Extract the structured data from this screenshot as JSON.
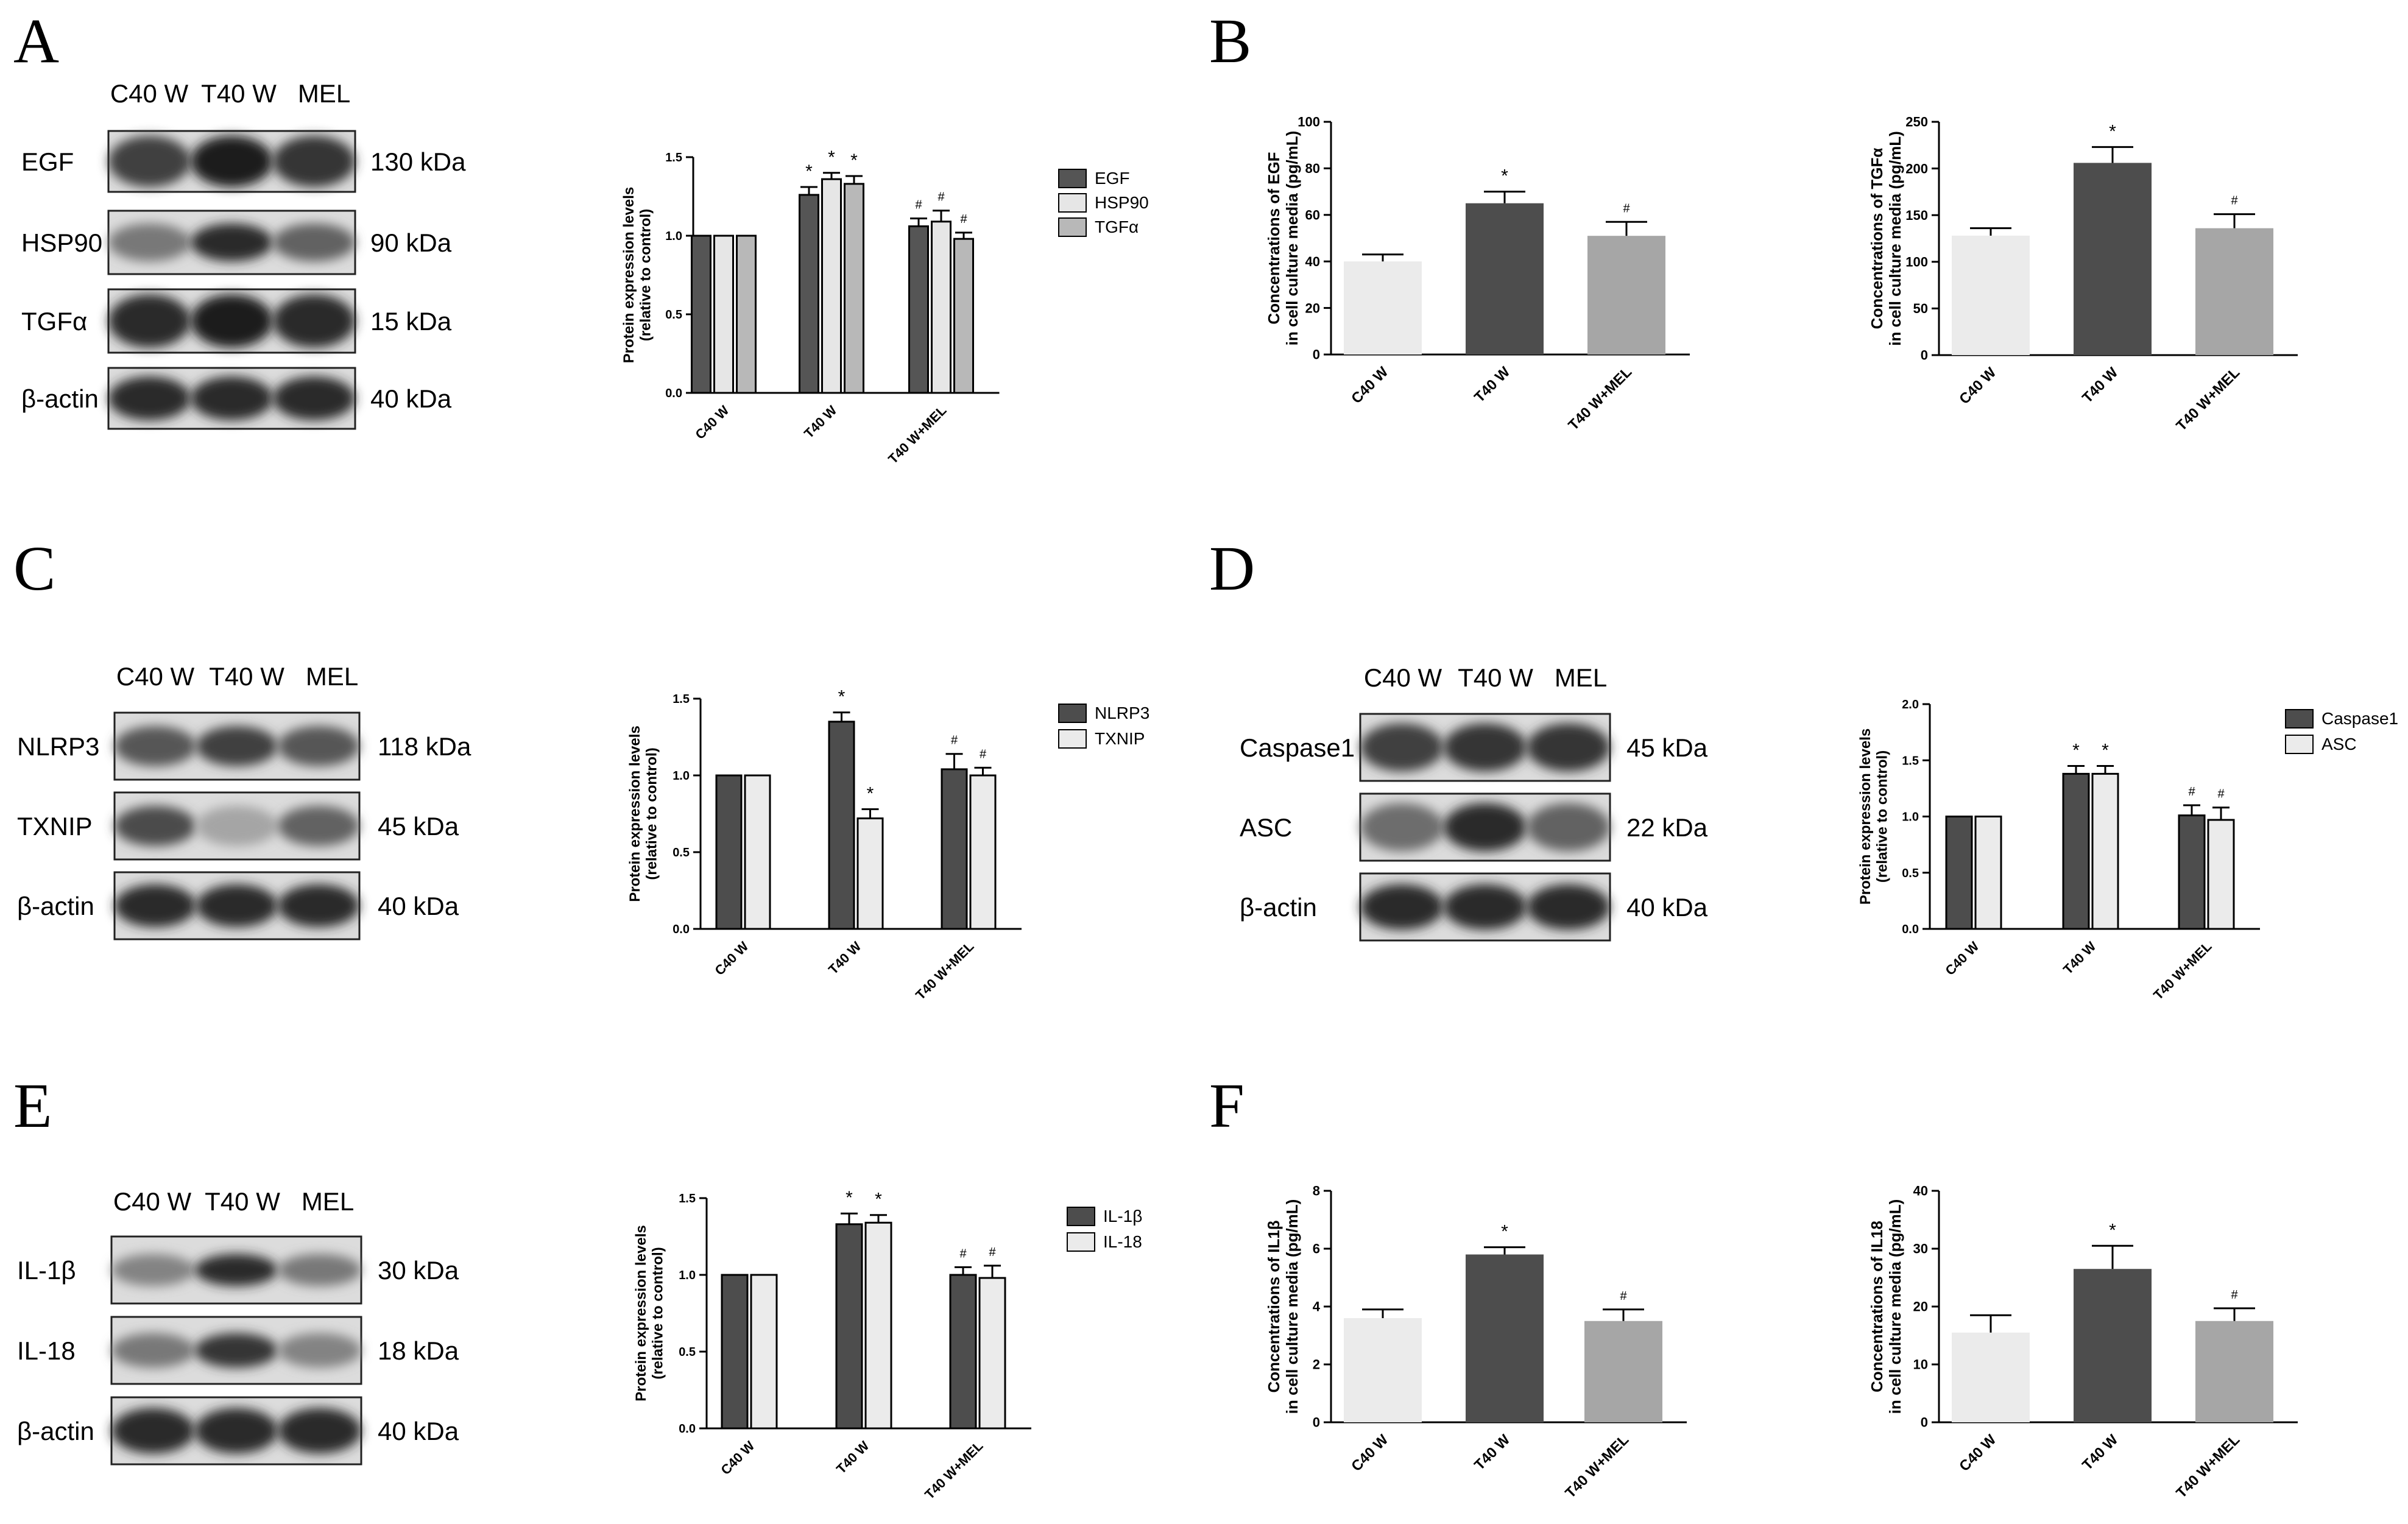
{
  "lane_labels": [
    "C40 W",
    "T40 W",
    "MEL"
  ],
  "panels": [
    {
      "letter": "A",
      "rows": [
        {
          "name": "EGF",
          "kda": "130 kDa"
        },
        {
          "name": "HSP90",
          "kda": "90 kDa"
        },
        {
          "name": "TGFα",
          "kda": "15 kDa"
        },
        {
          "name": "β-actin",
          "kda": "40 kDa"
        }
      ]
    },
    {
      "letter": "B",
      "rows": []
    },
    {
      "letter": "C",
      "rows": [
        {
          "name": "NLRP3",
          "kda": "118 kDa"
        },
        {
          "name": "TXNIP",
          "kda": "45 kDa"
        },
        {
          "name": "β-actin",
          "kda": "40 kDa"
        }
      ]
    },
    {
      "letter": "D",
      "rows": [
        {
          "name": "Caspase1",
          "kda": "45 kDa"
        },
        {
          "name": "ASC",
          "kda": "22 kDa"
        },
        {
          "name": "β-actin",
          "kda": "40 kDa"
        }
      ]
    },
    {
      "letter": "E",
      "rows": [
        {
          "name": "IL-1β",
          "kda": "30 kDa"
        },
        {
          "name": "IL-18",
          "kda": "18 kDa"
        },
        {
          "name": "β-actin",
          "kda": "40 kDa"
        }
      ]
    },
    {
      "letter": "F",
      "rows": []
    }
  ],
  "colors": {
    "dark": "#4d4d4d",
    "light": "#ebebeb",
    "mid": "#a6a6a6",
    "egf_dark": "#555555",
    "egf_light": "#e6e6e6",
    "egf_mid": "#b8b8b8"
  },
  "chart_data": [
    {
      "type": "bar",
      "categories": [
        "C40 W",
        "T40 W",
        "T40 W+MEL"
      ],
      "series": [
        {
          "name": "EGF",
          "values": [
            1.0,
            1.26,
            1.06
          ],
          "errors": [
            0,
            0.05,
            0.05
          ]
        },
        {
          "name": "HSP90",
          "values": [
            1.0,
            1.36,
            1.09
          ],
          "errors": [
            0,
            0.04,
            0.07
          ]
        },
        {
          "name": "TGFα",
          "values": [
            1.0,
            1.33,
            0.98
          ],
          "errors": [
            0,
            0.05,
            0.04
          ]
        }
      ],
      "annotations": [
        "",
        "*",
        "#"
      ],
      "ylabel": "Protein expression levels\n(relative to control)",
      "ylim": [
        0,
        1.5
      ],
      "yticks": [
        "0.0",
        "0.5",
        "1.0",
        "1.5"
      ],
      "legend": "right"
    },
    {
      "type": "bar",
      "categories": [
        "C40 W",
        "T40 W",
        "T40 W+MEL"
      ],
      "series": [
        {
          "values": [
            40,
            65,
            51
          ],
          "errors": [
            3,
            5,
            6
          ]
        }
      ],
      "annotations": [
        "",
        "*",
        "#"
      ],
      "ylabel": "Concentrations of EGF\nin cell culture media (pg/mL)",
      "ylim": [
        0,
        100
      ],
      "yticks": [
        "0",
        "20",
        "40",
        "60",
        "80",
        "100"
      ]
    },
    {
      "type": "bar",
      "categories": [
        "C40 W",
        "T40 W",
        "T40 W+MEL"
      ],
      "series": [
        {
          "values": [
            128,
            206,
            136
          ],
          "errors": [
            8,
            17,
            15
          ]
        }
      ],
      "annotations": [
        "",
        "*",
        "#"
      ],
      "ylabel": "Concentrations of TGFα\nin cell culture media (pg/mL)",
      "ylim": [
        0,
        250
      ],
      "yticks": [
        "0",
        "50",
        "100",
        "150",
        "200",
        "250"
      ]
    },
    {
      "type": "bar",
      "categories": [
        "C40 W",
        "T40 W",
        "T40 W+MEL"
      ],
      "series": [
        {
          "name": "NLRP3",
          "values": [
            1.0,
            1.35,
            1.04
          ],
          "errors": [
            0,
            0.06,
            0.1
          ]
        },
        {
          "name": "TXNIP",
          "values": [
            1.0,
            0.72,
            1.0
          ],
          "errors": [
            0,
            0.06,
            0.05
          ]
        }
      ],
      "annotations": [
        "",
        "*",
        "#"
      ],
      "ylabel": "Protein expression levels\n(relative to control)",
      "ylim": [
        0,
        1.5
      ],
      "yticks": [
        "0.0",
        "0.5",
        "1.0",
        "1.5"
      ],
      "legend": "right"
    },
    {
      "type": "bar",
      "categories": [
        "C40 W",
        "T40 W",
        "T40 W+MEL"
      ],
      "series": [
        {
          "name": "Caspase1",
          "values": [
            1.0,
            1.38,
            1.01
          ],
          "errors": [
            0,
            0.07,
            0.09
          ]
        },
        {
          "name": "ASC",
          "values": [
            1.0,
            1.38,
            0.97
          ],
          "errors": [
            0,
            0.07,
            0.11
          ]
        }
      ],
      "annotations": [
        "",
        "*",
        "#"
      ],
      "ylabel": "Protein expression levels\n(relative to control)",
      "ylim": [
        0,
        2.0
      ],
      "yticks": [
        "0.0",
        "0.5",
        "1.0",
        "1.5",
        "2.0"
      ],
      "legend": "top-right"
    },
    {
      "type": "bar",
      "categories": [
        "C40 W",
        "T40 W",
        "T40 W+MEL"
      ],
      "series": [
        {
          "name": "IL-1β",
          "values": [
            1.0,
            1.33,
            1.0
          ],
          "errors": [
            0,
            0.07,
            0.05
          ]
        },
        {
          "name": "IL-18",
          "values": [
            1.0,
            1.34,
            0.98
          ],
          "errors": [
            0,
            0.05,
            0.08
          ]
        }
      ],
      "annotations": [
        "",
        "*",
        "#"
      ],
      "ylabel": "Protein expression levels\n(relative to control)",
      "ylim": [
        0,
        1.5
      ],
      "yticks": [
        "0.0",
        "0.5",
        "1.0",
        "1.5"
      ],
      "legend": "right"
    },
    {
      "type": "bar",
      "categories": [
        "C40 W",
        "T40 W",
        "T40 W+MEL"
      ],
      "series": [
        {
          "values": [
            3.6,
            5.8,
            3.5
          ],
          "errors": [
            0.3,
            0.25,
            0.4
          ]
        }
      ],
      "annotations": [
        "",
        "*",
        "#"
      ],
      "ylabel": "Concentrations of IL1β\nin cell culture media (pg/mL)",
      "ylim": [
        0,
        8
      ],
      "yticks": [
        "0",
        "2",
        "4",
        "6",
        "8"
      ]
    },
    {
      "type": "bar",
      "categories": [
        "C40 W",
        "T40 W",
        "T40 W+MEL"
      ],
      "series": [
        {
          "values": [
            15.5,
            26.5,
            17.5
          ],
          "errors": [
            3,
            4,
            2.2
          ]
        }
      ],
      "annotations": [
        "",
        "*",
        "#"
      ],
      "ylabel": "Concentrations of IL18\nin cell culture media (pg/mL)",
      "ylim": [
        0,
        40
      ],
      "yticks": [
        "0",
        "10",
        "20",
        "30",
        "40"
      ]
    }
  ]
}
